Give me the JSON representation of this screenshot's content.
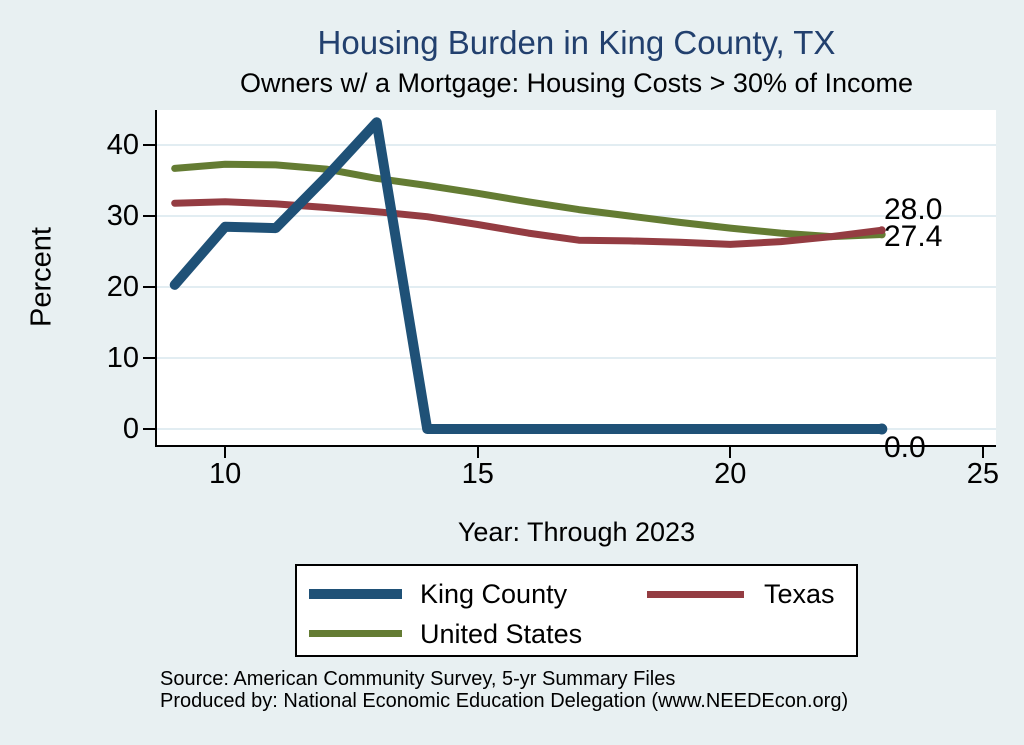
{
  "chart_data": {
    "type": "line",
    "title": "Housing Burden in King County, TX",
    "subtitle": "Owners w/ a Mortgage: Housing Costs > 30% of Income",
    "xlabel": "Year: Through 2023",
    "ylabel": "Percent",
    "x": [
      9,
      10,
      11,
      12,
      13,
      14,
      15,
      16,
      17,
      18,
      19,
      20,
      21,
      22,
      23
    ],
    "series": [
      {
        "name": "King County",
        "color": "#1f5177",
        "width": 10,
        "end_label": "0.0",
        "values": [
          20.3,
          28.5,
          28.3,
          35.5,
          43.2,
          0.0,
          0.0,
          0.0,
          0.0,
          0.0,
          0.0,
          0.0,
          0.0,
          0.0,
          0.0
        ]
      },
      {
        "name": "Texas",
        "color": "#943c42",
        "width": 7,
        "end_label": "28.0",
        "values": [
          31.8,
          32.0,
          31.7,
          31.2,
          30.6,
          29.9,
          28.8,
          27.6,
          26.6,
          26.5,
          26.3,
          26.0,
          26.4,
          27.1,
          28.0
        ]
      },
      {
        "name": "United States",
        "color": "#647c33",
        "width": 7,
        "end_label": "27.4",
        "values": [
          36.7,
          37.3,
          37.2,
          36.6,
          35.3,
          34.3,
          33.2,
          32.0,
          30.9,
          30.0,
          29.1,
          28.3,
          27.6,
          27.1,
          27.4
        ]
      }
    ],
    "draw_order": [
      "United States",
      "Texas",
      "King County"
    ],
    "axes": {
      "x": {
        "min": 8.65,
        "max": 25.26,
        "ticks": [
          10,
          15,
          20,
          25
        ]
      },
      "y": {
        "min": -2.25,
        "max": 44.93,
        "ticks": [
          0,
          10,
          20,
          30,
          40
        ]
      }
    },
    "legend": {
      "rows": [
        [
          "King County",
          "Texas"
        ],
        [
          "United States"
        ]
      ]
    },
    "grid": "on",
    "legend_position": "bottom",
    "colors": {
      "background": "#e8f0f2",
      "plot_background": "#ffffff",
      "grid": "#e2edf2",
      "title": "#22406e",
      "axis": "#000000"
    }
  },
  "source": {
    "line1": "Source: American Community Survey, 5-yr Summary Files",
    "line2": "Produced by: National Economic Education Delegation (www.NEEDEcon.org)"
  }
}
